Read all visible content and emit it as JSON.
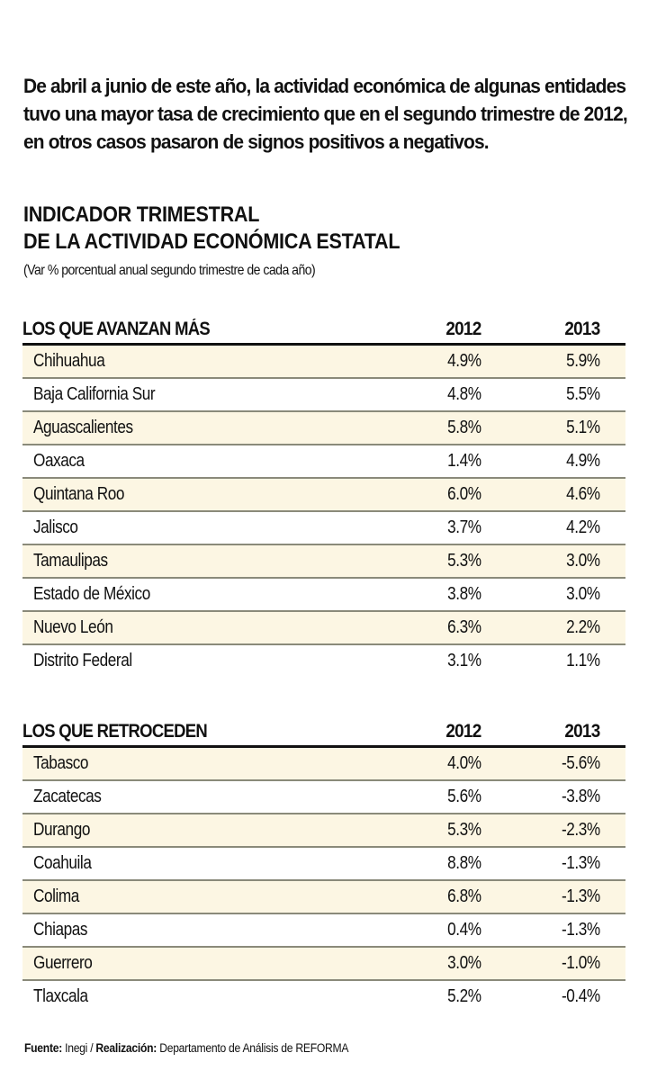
{
  "intro": "De abril a junio de este año, la actividad económica de algunas entidades tuvo una mayor tasa de crecimiento que en el segundo trimestre de 2012, en otros casos pasaron de signos positivos a negativos.",
  "title": {
    "line1": "INDICADOR TRIMESTRAL",
    "line2": "DE LA ACTIVIDAD ECONÓMICA ESTATAL"
  },
  "subtitle": "(Var % porcentual anual segundo trimestre de cada año)",
  "colors": {
    "row_shade": "#fcf6e3",
    "rule": "#111111"
  },
  "sections": [
    {
      "label": "LOS QUE AVANZAN MÁS",
      "col1": "2012",
      "col2": "2013",
      "rows": [
        {
          "state": "Chihuahua",
          "v2012": "4.9%",
          "v2013": "5.9%"
        },
        {
          "state": "Baja California Sur",
          "v2012": "4.8%",
          "v2013": "5.5%"
        },
        {
          "state": "Aguascalientes",
          "v2012": "5.8%",
          "v2013": "5.1%"
        },
        {
          "state": "Oaxaca",
          "v2012": "1.4%",
          "v2013": "4.9%"
        },
        {
          "state": "Quintana Roo",
          "v2012": "6.0%",
          "v2013": "4.6%"
        },
        {
          "state": "Jalisco",
          "v2012": "3.7%",
          "v2013": "4.2%"
        },
        {
          "state": "Tamaulipas",
          "v2012": "5.3%",
          "v2013": "3.0%"
        },
        {
          "state": "Estado de México",
          "v2012": "3.8%",
          "v2013": "3.0%"
        },
        {
          "state": "Nuevo León",
          "v2012": "6.3%",
          "v2013": "2.2%"
        },
        {
          "state": "Distrito Federal",
          "v2012": "3.1%",
          "v2013": "1.1%"
        }
      ]
    },
    {
      "label": "LOS QUE RETROCEDEN",
      "col1": "2012",
      "col2": "2013",
      "rows": [
        {
          "state": "Tabasco",
          "v2012": "4.0%",
          "v2013": "-5.6%"
        },
        {
          "state": "Zacatecas",
          "v2012": "5.6%",
          "v2013": "-3.8%"
        },
        {
          "state": "Durango",
          "v2012": "5.3%",
          "v2013": "-2.3%"
        },
        {
          "state": "Coahuila",
          "v2012": "8.8%",
          "v2013": "-1.3%"
        },
        {
          "state": "Colima",
          "v2012": "6.8%",
          "v2013": "-1.3%"
        },
        {
          "state": "Chiapas",
          "v2012": "0.4%",
          "v2013": "-1.3%"
        },
        {
          "state": "Guerrero",
          "v2012": "3.0%",
          "v2013": "-1.0%"
        },
        {
          "state": "Tlaxcala",
          "v2012": "5.2%",
          "v2013": "-0.4%"
        }
      ]
    }
  ],
  "footer": {
    "source_label": "Fuente:",
    "source": "Inegi",
    "separator": "/",
    "credit_label": "Realización:",
    "credit": "Departamento de Análisis de REFORMA"
  }
}
